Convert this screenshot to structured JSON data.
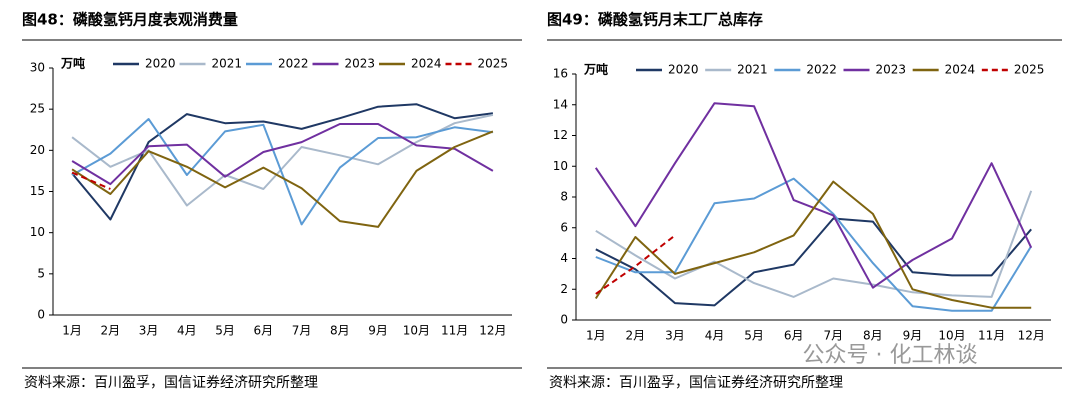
{
  "chart_data": [
    {
      "type": "line",
      "title": "图48：磷酸氢钙月度表观消费量",
      "unit": "万吨",
      "source": "资料来源：百川盈孚，国信证券经济研究所整理",
      "categories": [
        "1月",
        "2月",
        "3月",
        "4月",
        "5月",
        "6月",
        "7月",
        "8月",
        "9月",
        "10月",
        "11月",
        "12月"
      ],
      "ylim": [
        0,
        30
      ],
      "yticks": [
        0,
        5,
        10,
        15,
        20,
        25,
        30
      ],
      "series": [
        {
          "name": "2020",
          "color": "#1f3864",
          "values": [
            17.2,
            11.6,
            21,
            24.4,
            23.3,
            23.5,
            22.6,
            23.9,
            25.3,
            25.6,
            23.9,
            24.5
          ]
        },
        {
          "name": "2021",
          "color": "#a9b9cb",
          "values": [
            21.6,
            18,
            20,
            13.3,
            17,
            15.3,
            20.4,
            19.4,
            18.3,
            21,
            23.3,
            24.3
          ]
        },
        {
          "name": "2022",
          "color": "#5b9bd5",
          "values": [
            17,
            19.6,
            23.8,
            17,
            22.3,
            23.1,
            11,
            17.9,
            21.5,
            21.6,
            22.8,
            22.2
          ]
        },
        {
          "name": "2023",
          "color": "#7030a0",
          "values": [
            18.7,
            15.9,
            20.5,
            20.7,
            16.8,
            19.8,
            21,
            23.2,
            23.2,
            20.6,
            20.2,
            17.5
          ]
        },
        {
          "name": "2024",
          "color": "#7f6410",
          "values": [
            17.7,
            14.7,
            19.9,
            18,
            15.5,
            17.9,
            15.4,
            11.4,
            10.7,
            17.5,
            20.4,
            22.3
          ]
        },
        {
          "name": "2025",
          "color": "#c00000",
          "style": "dashed",
          "values": [
            17.3,
            15.3,
            null,
            null,
            null,
            null,
            null,
            null,
            null,
            null,
            null,
            null
          ]
        }
      ]
    },
    {
      "type": "line",
      "title": "图49：磷酸氢钙月末工厂总库存",
      "unit": "万吨",
      "source": "资料来源：百川盈孚，国信证券经济研究所整理",
      "categories": [
        "1月",
        "2月",
        "3月",
        "4月",
        "5月",
        "6月",
        "7月",
        "8月",
        "9月",
        "10月",
        "11月",
        "12月"
      ],
      "ylim": [
        0,
        16
      ],
      "yticks": [
        0,
        2,
        4,
        6,
        8,
        10,
        12,
        14,
        16
      ],
      "series": [
        {
          "name": "2020",
          "color": "#1f3864",
          "values": [
            4.6,
            3.3,
            1.1,
            0.95,
            3.1,
            3.6,
            6.6,
            6.4,
            3.1,
            2.9,
            2.9,
            5.9
          ]
        },
        {
          "name": "2021",
          "color": "#a9b9cb",
          "values": [
            5.8,
            4.2,
            2.7,
            3.8,
            2.4,
            1.5,
            2.7,
            2.3,
            1.8,
            1.6,
            1.5,
            8.4
          ]
        },
        {
          "name": "2022",
          "color": "#5b9bd5",
          "values": [
            4.1,
            3.1,
            3.1,
            7.6,
            7.9,
            9.2,
            6.9,
            3.7,
            0.9,
            0.6,
            0.6,
            4.8
          ]
        },
        {
          "name": "2023",
          "color": "#7030a0",
          "values": [
            9.9,
            6.1,
            10.2,
            14.1,
            13.9,
            7.8,
            6.8,
            2.1,
            3.9,
            5.3,
            10.2,
            4.7
          ]
        },
        {
          "name": "2024",
          "color": "#7f6410",
          "values": [
            1.4,
            5.4,
            3.0,
            3.7,
            4.4,
            5.5,
            9.0,
            6.9,
            2.0,
            1.3,
            0.8,
            0.8
          ]
        },
        {
          "name": "2025",
          "color": "#c00000",
          "style": "dashed",
          "values": [
            1.7,
            3.5,
            5.5,
            null,
            null,
            null,
            null,
            null,
            null,
            null,
            null,
            null
          ]
        }
      ]
    }
  ],
  "watermark": "公众号 · 化工林谈"
}
